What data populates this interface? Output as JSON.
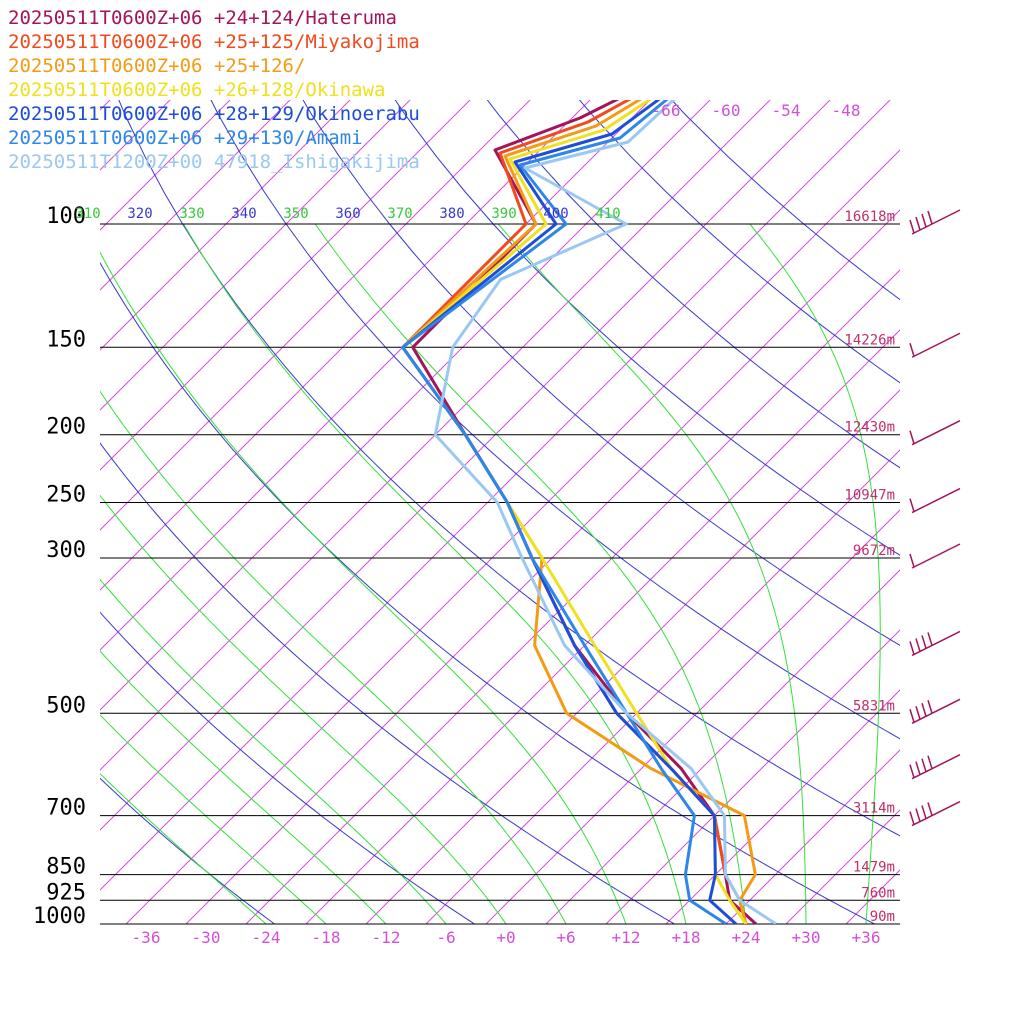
{
  "chart_data": {
    "type": "line",
    "title": "",
    "xlabel": "",
    "ylabel": "",
    "pressure_axis": {
      "levels": [
        100,
        150,
        200,
        250,
        300,
        500,
        700,
        850,
        925,
        1000
      ],
      "heights": [
        "16618m",
        "14226m",
        "12430m",
        "10947m",
        "9672m",
        "5831m",
        "3114m",
        "1479m",
        "760m",
        "90m"
      ]
    },
    "temperature_ticks": [
      "-36",
      "-30",
      "-24",
      "-18",
      "-12",
      "-6",
      "+0",
      "+6",
      "+12",
      "+18",
      "+24",
      "+30",
      "+36"
    ],
    "temperature_tick_values": [
      -36,
      -30,
      -24,
      -18,
      -12,
      -6,
      0,
      6,
      12,
      18,
      24,
      30,
      36
    ],
    "theta_labels": [
      {
        "text": "310",
        "value": 310,
        "color": "#35c83a"
      },
      {
        "text": "320",
        "value": 320,
        "color": "#3838d0"
      },
      {
        "text": "330",
        "value": 330,
        "color": "#35c83a"
      },
      {
        "text": "340",
        "value": 340,
        "color": "#3838d0"
      },
      {
        "text": "350",
        "value": 350,
        "color": "#35c83a"
      },
      {
        "text": "360",
        "value": 360,
        "color": "#3838d0"
      },
      {
        "text": "370",
        "value": 370,
        "color": "#35c83a"
      },
      {
        "text": "380",
        "value": 380,
        "color": "#3838d0"
      },
      {
        "text": "390",
        "value": 390,
        "color": "#35c83a"
      },
      {
        "text": "400",
        "value": 400,
        "color": "#3838d0"
      },
      {
        "text": "410",
        "value": 410,
        "color": "#35c83a"
      }
    ],
    "top_temperature_labels": [
      "-66",
      "-60",
      "-54",
      "-48"
    ],
    "series": [
      {
        "name": "20250511T0600Z+06 +24+124/Hateruma",
        "color": "#a3145a",
        "p": [
          100,
          150,
          200,
          250,
          300,
          400,
          500,
          600,
          700,
          850,
          925,
          1000
        ],
        "t": [
          -67,
          -67,
          -53,
          -42,
          -34,
          -21,
          -9,
          2,
          10,
          17,
          20,
          25
        ]
      },
      {
        "name": "20250511T0600Z+06 +25+125/Miyakojima",
        "color": "#f04a1e",
        "p": [
          100,
          150,
          200,
          250,
          300,
          400,
          500,
          600,
          700,
          850,
          925,
          1000
        ],
        "t": [
          -68,
          -68,
          -53,
          -42,
          -34,
          -21,
          -10,
          1,
          10,
          17,
          21,
          24
        ]
      },
      {
        "name": "20250511T0600Z+06 +25+126/",
        "color": "#f59a14",
        "p": [
          100,
          150,
          200,
          250,
          300,
          400,
          500,
          600,
          700,
          850,
          925,
          1000
        ],
        "t": [
          -67,
          -68,
          -53,
          -42,
          -33,
          -25,
          -15,
          -1,
          13,
          20,
          21,
          24
        ]
      },
      {
        "name": "20250511T0600Z+06 +26+128/Okinawa",
        "color": "#f0e01e",
        "p": [
          100,
          150,
          200,
          250,
          300,
          400,
          500,
          600,
          700,
          850,
          925,
          1000
        ],
        "t": [
          -66,
          -68,
          -53,
          -42,
          -33,
          -19,
          -8,
          1,
          10,
          16,
          20,
          24
        ]
      },
      {
        "name": "20250511T0600Z+06 +28+129/Okinoerabu",
        "color": "#1e4ed8",
        "p": [
          100,
          150,
          200,
          250,
          300,
          400,
          500,
          600,
          700,
          850,
          925,
          1000
        ],
        "t": [
          -65,
          -68,
          -53,
          -42,
          -34,
          -21,
          -10,
          1,
          10,
          16,
          18,
          23
        ]
      },
      {
        "name": "20250511T0600Z+06 +29+130/Amami",
        "color": "#2e86e8",
        "p": [
          100,
          150,
          200,
          250,
          300,
          400,
          500,
          600,
          700,
          850,
          925,
          1000
        ],
        "t": [
          -64,
          -68,
          -53,
          -42,
          -34,
          -20,
          -9,
          0,
          8,
          13,
          16,
          22
        ]
      },
      {
        "name": "20250511T1200Z+00 47918_Ishigakijima",
        "color": "#9ac8f2",
        "p": [
          100,
          120,
          150,
          200,
          250,
          300,
          400,
          500,
          600,
          700,
          850,
          925,
          1000
        ],
        "t": [
          -58,
          -65,
          -63,
          -56,
          -43,
          -35,
          -22,
          -9,
          3,
          11,
          17,
          21,
          27
        ]
      }
    ],
    "wind_barbs": {
      "color": "#a3145a",
      "pressures": [
        100,
        150,
        200,
        250,
        300,
        400,
        500,
        600,
        700
      ]
    },
    "grid": true
  }
}
